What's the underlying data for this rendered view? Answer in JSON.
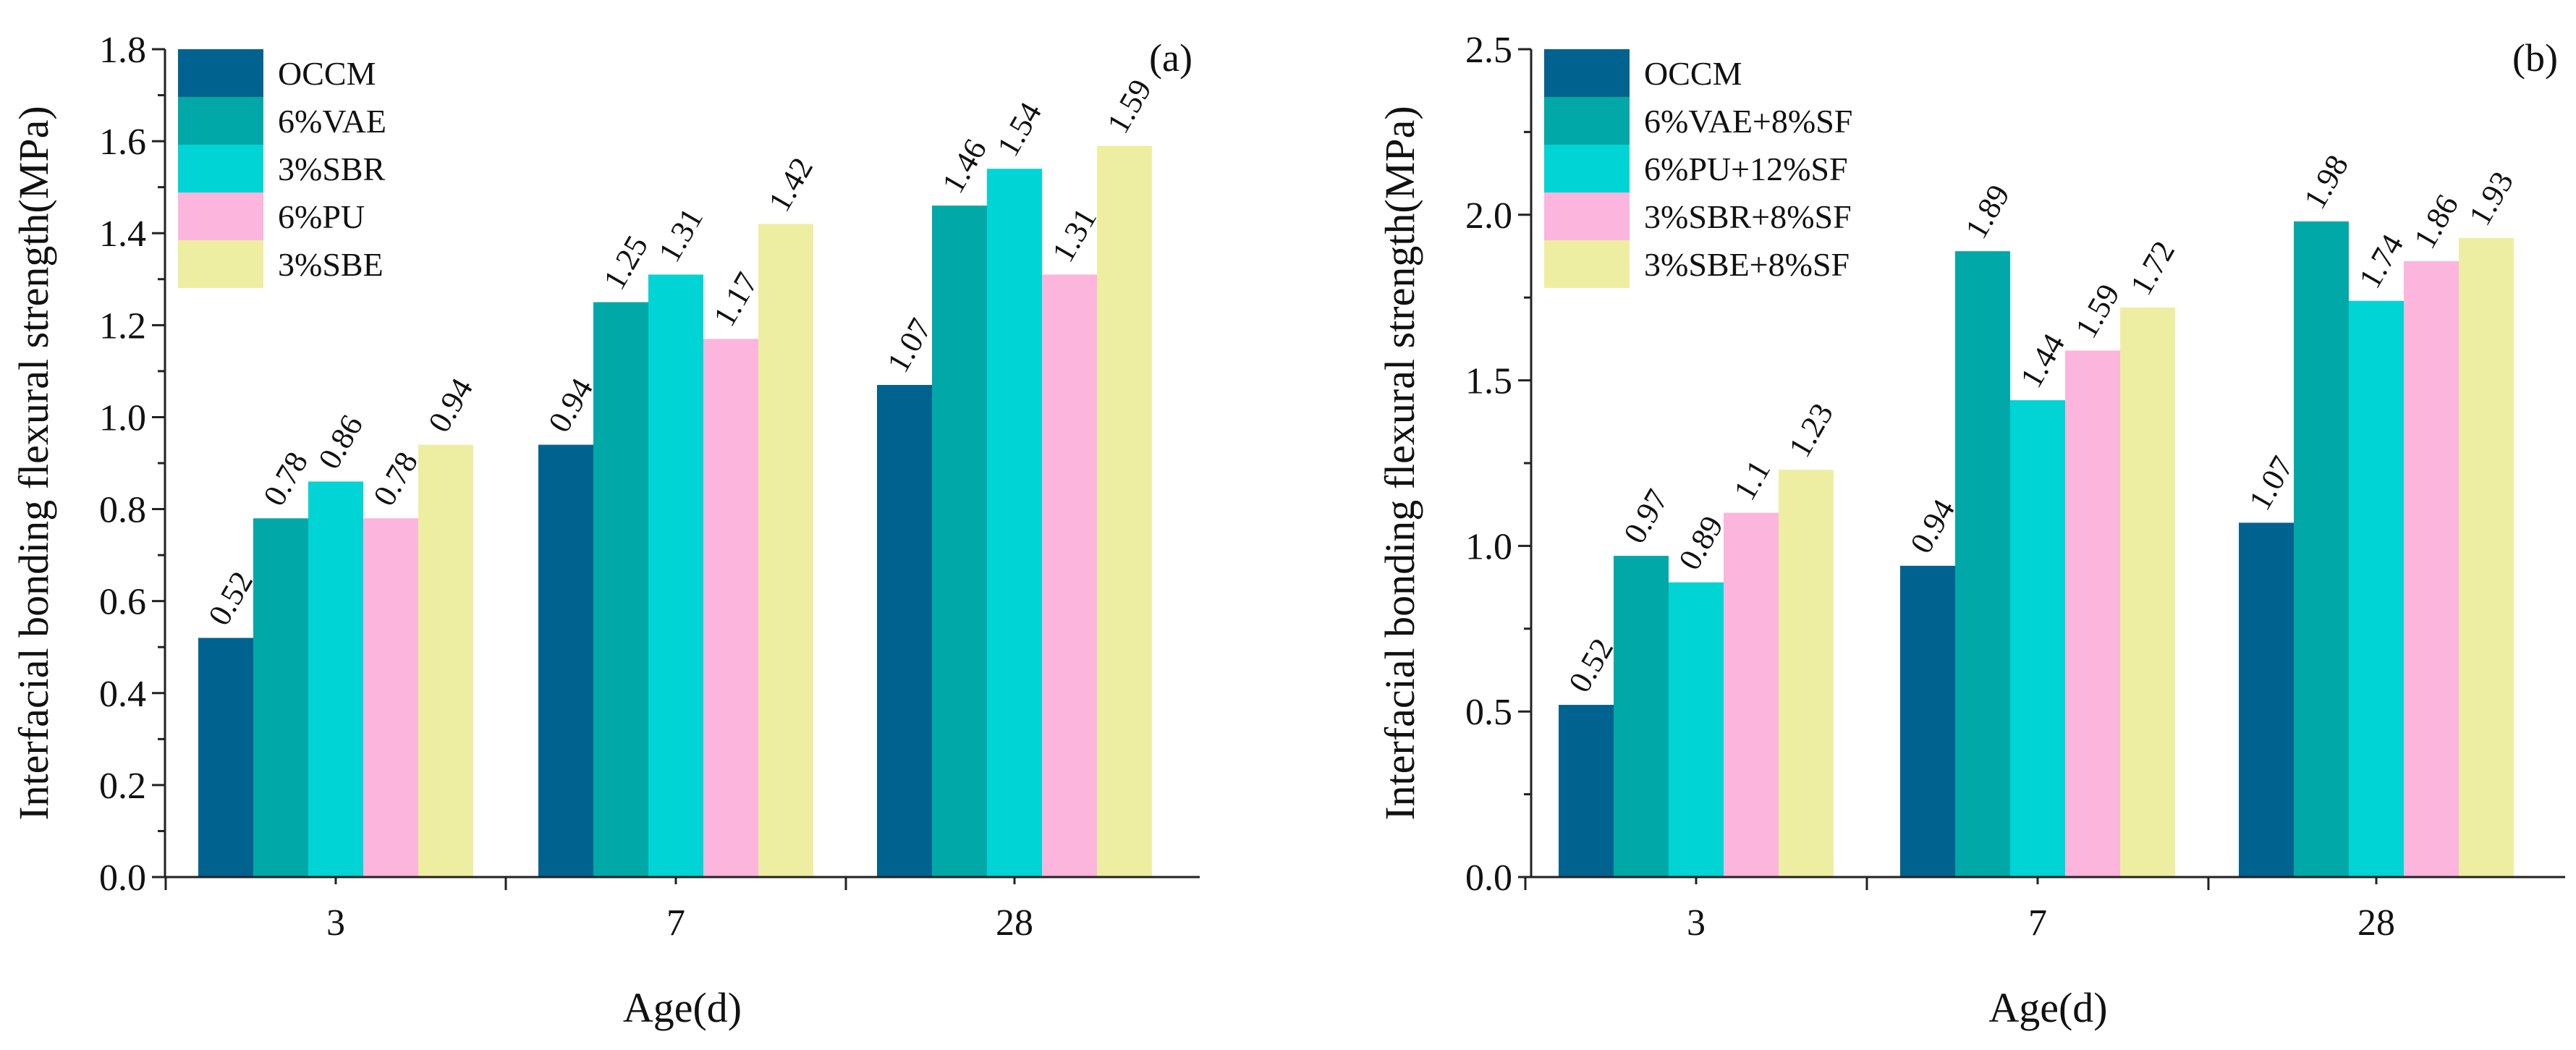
{
  "chart_data": [
    {
      "type": "bar",
      "panel_label": "(a)",
      "categories": [
        "3",
        "7",
        "28"
      ],
      "xlabel": "Age(d)",
      "ylabel": "Interfacial bonding flexural strength(MPa)",
      "ylim": [
        0,
        1.8
      ],
      "yticks": [
        "0.0",
        "0.2",
        "0.4",
        "0.6",
        "0.8",
        "1.0",
        "1.2",
        "1.4",
        "1.6",
        "1.8"
      ],
      "legend_position": "top-left",
      "series": [
        {
          "name": "OCCM",
          "color": "#00638f",
          "values": [
            0.52,
            0.94,
            1.07
          ],
          "labels": [
            "0.52",
            "0.94",
            "1.07"
          ]
        },
        {
          "name": "6%VAE",
          "color": "#00a8a8",
          "values": [
            0.78,
            1.25,
            1.46
          ],
          "labels": [
            "0.78",
            "1.25",
            "1.46"
          ]
        },
        {
          "name": "3%SBR",
          "color": "#00d4d4",
          "values": [
            0.86,
            1.31,
            1.54
          ],
          "labels": [
            "0.86",
            "1.31",
            "1.54"
          ]
        },
        {
          "name": "6%PU",
          "color": "#fcb5dc",
          "values": [
            0.78,
            1.17,
            1.31
          ],
          "labels": [
            "0.78",
            "1.17",
            "1.31"
          ]
        },
        {
          "name": "3%SBE",
          "color": "#eeeea2",
          "values": [
            0.94,
            1.42,
            1.59
          ],
          "labels": [
            "0.94",
            "1.42",
            "1.59"
          ]
        }
      ]
    },
    {
      "type": "bar",
      "panel_label": "(b)",
      "categories": [
        "3",
        "7",
        "28"
      ],
      "xlabel": "Age(d)",
      "ylabel": "Interfacial bonding flexural strength(MPa)",
      "ylim": [
        0,
        2.5
      ],
      "yticks": [
        "0.0",
        "0.5",
        "1.0",
        "1.5",
        "2.0",
        "2.5"
      ],
      "legend_position": "top-left",
      "series": [
        {
          "name": "OCCM",
          "color": "#00638f",
          "values": [
            0.52,
            0.94,
            1.07
          ],
          "labels": [
            "0.52",
            "0.94",
            "1.07"
          ]
        },
        {
          "name": "6%VAE+8%SF",
          "color": "#00a8a8",
          "values": [
            0.97,
            1.89,
            1.98
          ],
          "labels": [
            "0.97",
            "1.89",
            "1.98"
          ]
        },
        {
          "name": "6%PU+12%SF",
          "color": "#00d4d4",
          "values": [
            0.89,
            1.44,
            1.74
          ],
          "labels": [
            "0.89",
            "1.44",
            "1.74"
          ]
        },
        {
          "name": "3%SBR+8%SF",
          "color": "#fcb5dc",
          "values": [
            1.1,
            1.59,
            1.86
          ],
          "labels": [
            "1.1",
            "1.59",
            "1.86"
          ]
        },
        {
          "name": "3%SBE+8%SF",
          "color": "#eeeea2",
          "values": [
            1.23,
            1.72,
            1.93
          ],
          "labels": [
            "1.23",
            "1.72",
            "1.93"
          ]
        }
      ]
    }
  ]
}
